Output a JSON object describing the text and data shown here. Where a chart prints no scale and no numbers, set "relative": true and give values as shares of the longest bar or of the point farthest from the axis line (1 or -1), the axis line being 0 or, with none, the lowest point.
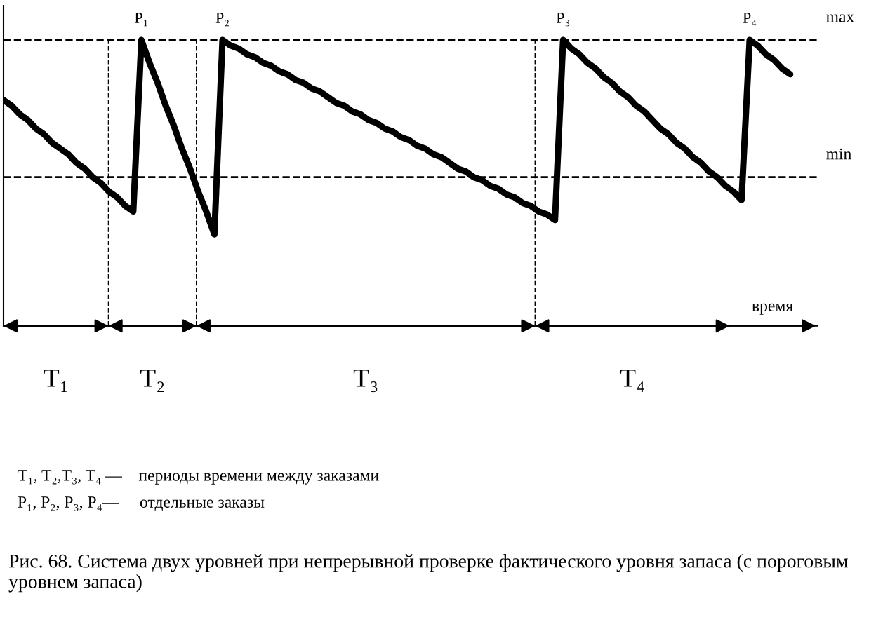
{
  "chart_data": {
    "type": "line",
    "relative": true,
    "title": "Рис. 68. Система двух уровней при непрерывной проверке фактического уровня запаса (с пороговым уровнем запаса)",
    "xlabel": "время",
    "marker": "none",
    "line_style": "solid",
    "categories": [
      null,
      null,
      null,
      null,
      null,
      null,
      null,
      null,
      null,
      null,
      null,
      null,
      null,
      null,
      null,
      null,
      null,
      null,
      null,
      null,
      null,
      null,
      null,
      null,
      null,
      null,
      null,
      null,
      null,
      null,
      null,
      null,
      null,
      null,
      null,
      null,
      null,
      null,
      null,
      null,
      null,
      null,
      null,
      null,
      null,
      null,
      null,
      null,
      null,
      null,
      null,
      null,
      null,
      null,
      null,
      null,
      null,
      null,
      null,
      null,
      null,
      null,
      null,
      null,
      null,
      null,
      null,
      null,
      null,
      null,
      null,
      null,
      null,
      null,
      null,
      null,
      null,
      null,
      null,
      null,
      null,
      null,
      null,
      null,
      null,
      null,
      null,
      null,
      null,
      null,
      null,
      null,
      null,
      null,
      null,
      null,
      null,
      null
    ],
    "series": [
      {
        "color": "#000000",
        "values": [
          0.79,
          0.77,
          0.74,
          0.72,
          0.69,
          0.67,
          0.64,
          0.62,
          0.6,
          0.57,
          0.55,
          0.52,
          0.5,
          0.47,
          0.45,
          0.42,
          0.4,
          1,
          0.92,
          0.85,
          0.77,
          0.7,
          0.62,
          0.55,
          0.47,
          0.4,
          0.32,
          1,
          0.98,
          0.97,
          0.95,
          0.94,
          0.92,
          0.91,
          0.89,
          0.88,
          0.86,
          0.85,
          0.83,
          0.82,
          0.8,
          0.78,
          0.77,
          0.75,
          0.74,
          0.72,
          0.71,
          0.69,
          0.68,
          0.66,
          0.65,
          0.63,
          0.62,
          0.6,
          0.59,
          0.57,
          0.55,
          0.54,
          0.52,
          0.51,
          0.49,
          0.48,
          0.46,
          0.45,
          0.43,
          0.42,
          0.4,
          0.39,
          0.37,
          1,
          0.97,
          0.95,
          0.92,
          0.9,
          0.87,
          0.85,
          0.82,
          0.8,
          0.77,
          0.75,
          0.72,
          0.69,
          0.67,
          0.64,
          0.62,
          0.59,
          0.57,
          0.54,
          0.52,
          0.49,
          0.47,
          0.44,
          1,
          0.98,
          0.95,
          0.93,
          0.9,
          0.88
        ]
      }
    ],
    "ref_lines": [
      {
        "axis": "y",
        "value": 1,
        "label": "max",
        "line_style": "dashed"
      },
      {
        "axis": "y",
        "value": 0.52,
        "label": "min",
        "line_style": "dashed"
      }
    ],
    "annotations": [
      "T₁",
      "T₂",
      "T₃",
      "T₄",
      {
        "text": "P₁",
        "y": 1
      },
      {
        "text": "P₂",
        "y": 1
      },
      {
        "text": "P₃",
        "y": 1
      },
      {
        "text": "P₄",
        "y": 1
      },
      "T₁, T₂,T₃, T₄ —    периоды времени между заказами",
      "P₁, P₂, P₃, P₄—     отдельные заказы"
    ]
  }
}
